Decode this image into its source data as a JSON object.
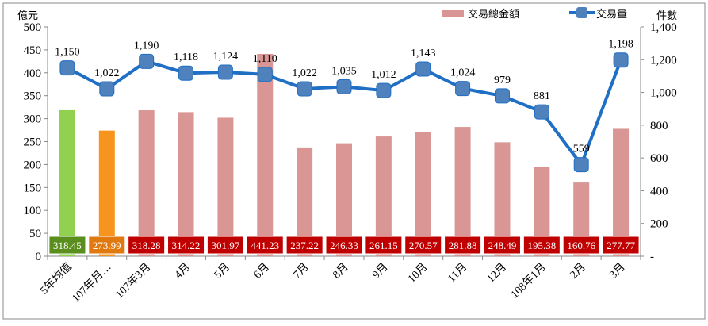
{
  "chart_data": {
    "type": "bar+line",
    "categories": [
      "5年均值",
      "107年月…",
      "107年3月",
      "4月",
      "5月",
      "6月",
      "7月",
      "8月",
      "9月",
      "10月",
      "11月",
      "12月",
      "108年1月",
      "2月",
      "3月"
    ],
    "series": [
      {
        "name": "交易總金額",
        "type": "bar",
        "axis": "left",
        "values": [
          318.45,
          273.99,
          318.28,
          314.22,
          301.97,
          441.23,
          237.22,
          246.33,
          261.15,
          270.57,
          281.88,
          248.49,
          195.38,
          160.76,
          277.77
        ],
        "labels": [
          "318.45",
          "273.99",
          "318.28",
          "314.22",
          "301.97",
          "441.23",
          "237.22",
          "246.33",
          "261.15",
          "270.57",
          "281.88",
          "248.49",
          "195.38",
          "160.76",
          "277.77"
        ]
      },
      {
        "name": "交易量",
        "type": "line",
        "axis": "right",
        "starts_at_index": 0,
        "values": [
          1150,
          1022,
          1190,
          1118,
          1124,
          1110,
          1022,
          1035,
          1012,
          1143,
          1024,
          979,
          881,
          559,
          1198
        ],
        "labels": [
          "1,150",
          "1,022",
          "1,190",
          "1,118",
          "1,124",
          "1,110",
          "1,022",
          "1,035",
          "1,012",
          "1,143",
          "1,024",
          "979",
          "881",
          "559",
          "1,198"
        ]
      }
    ],
    "bar_colors": [
      "#92d050",
      "#f7941d",
      "#d99694",
      "#d99694",
      "#d99694",
      "#d99694",
      "#d99694",
      "#d99694",
      "#d99694",
      "#d99694",
      "#d99694",
      "#d99694",
      "#d99694",
      "#d99694",
      "#d99694"
    ],
    "label_box_colors": [
      "#5a8f1e",
      "#e07a10",
      "#c00000",
      "#c00000",
      "#c00000",
      "#c00000",
      "#c00000",
      "#c00000",
      "#c00000",
      "#c00000",
      "#c00000",
      "#c00000",
      "#c00000",
      "#c00000",
      "#c00000"
    ],
    "line_color": "#1f6fc5",
    "marker_color": "#4f81bd",
    "ylabel": "億元",
    "y2label": "件數",
    "ylim": [
      0,
      500
    ],
    "y2lim": [
      0,
      1400
    ],
    "yticks": [
      "0",
      "50",
      "100",
      "150",
      "200",
      "250",
      "300",
      "350",
      "400",
      "450",
      "500"
    ],
    "y2ticks": [
      "-",
      "200",
      "400",
      "600",
      "800",
      "1,000",
      "1,200",
      "1,400"
    ],
    "legend": {
      "placement": "top-right",
      "entries": [
        "交易總金額",
        "交易量"
      ]
    },
    "grid": false
  }
}
